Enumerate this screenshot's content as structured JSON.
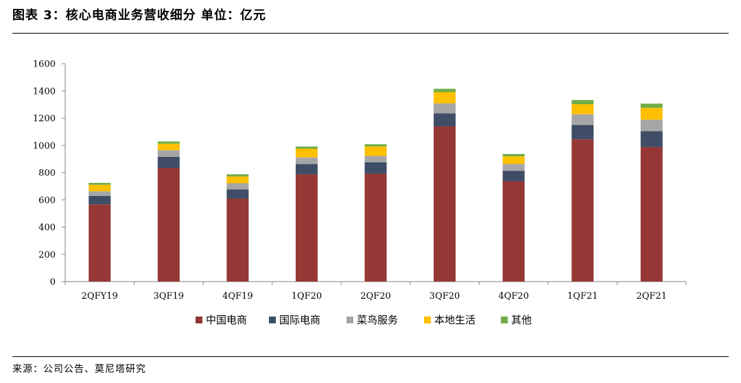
{
  "header": {
    "title": "图表 3：核心电商业务营收细分 单位：亿元"
  },
  "footer": {
    "source": "来源：公司公告、莫尼塔研究"
  },
  "chart_data": {
    "type": "bar",
    "stacked": true,
    "categories": [
      "2QFY19",
      "3QF19",
      "4QF19",
      "1QF20",
      "2QF20",
      "3QF20",
      "4QF20",
      "1QF21",
      "2QF21"
    ],
    "series": [
      {
        "name": "中国电商",
        "color": "#953735",
        "values": [
          567,
          835,
          609,
          787,
          792,
          1140,
          737,
          1045,
          988
        ]
      },
      {
        "name": "国际电商",
        "color": "#3F4E66",
        "values": [
          62,
          82,
          68,
          76,
          85,
          96,
          77,
          105,
          117
        ]
      },
      {
        "name": "菜鸟服务",
        "color": "#A6A6A6",
        "values": [
          34,
          48,
          45,
          49,
          46,
          73,
          50,
          79,
          84
        ]
      },
      {
        "name": "本地生活",
        "color": "#FFC000",
        "values": [
          48,
          48,
          50,
          64,
          70,
          82,
          56,
          74,
          87
        ]
      },
      {
        "name": "其他",
        "color": "#70AD47",
        "values": [
          14,
          16,
          16,
          16,
          16,
          25,
          17,
          30,
          31
        ]
      }
    ],
    "ylim": [
      0,
      1600
    ],
    "yticks": [
      0,
      200,
      400,
      600,
      800,
      1000,
      1200,
      1400,
      1600
    ],
    "grid": false,
    "legend": "bottom"
  }
}
